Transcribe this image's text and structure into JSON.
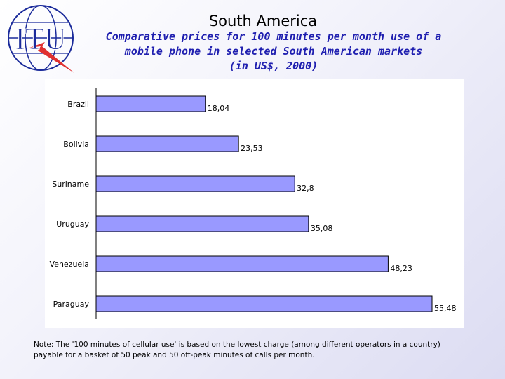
{
  "header": {
    "title": "South America",
    "subtitle_lines": [
      "Comparative prices for 100 minutes per month use of a",
      "mobile phone in selected South American markets",
      "(in US$, 2000)"
    ]
  },
  "logo": {
    "text": "ITU"
  },
  "note": {
    "lines": [
      "Note: The '100 minutes of cellular use' is based on the lowest charge (among different operators in a country)",
      "payable for a basket of 50 peak and 50 off-peak minutes of calls per month."
    ]
  },
  "colors": {
    "bar_fill": "#9999ff",
    "bar_stroke": "#000000",
    "subtitle": "#2020b0",
    "logo": "#1a2a9a",
    "lightning": "#e03030"
  },
  "chart_data": {
    "type": "bar",
    "orientation": "horizontal",
    "categories": [
      "Brazil",
      "Bolivia",
      "Suriname",
      "Uruguay",
      "Venezuela",
      "Paraguay"
    ],
    "values": [
      18.04,
      23.53,
      32.8,
      35.08,
      48.23,
      55.48
    ],
    "data_labels": [
      "18,04",
      "23,53",
      "32,8",
      "35,08",
      "48,23",
      "55,48"
    ],
    "xlim": [
      0,
      55.48
    ],
    "grid": false
  }
}
